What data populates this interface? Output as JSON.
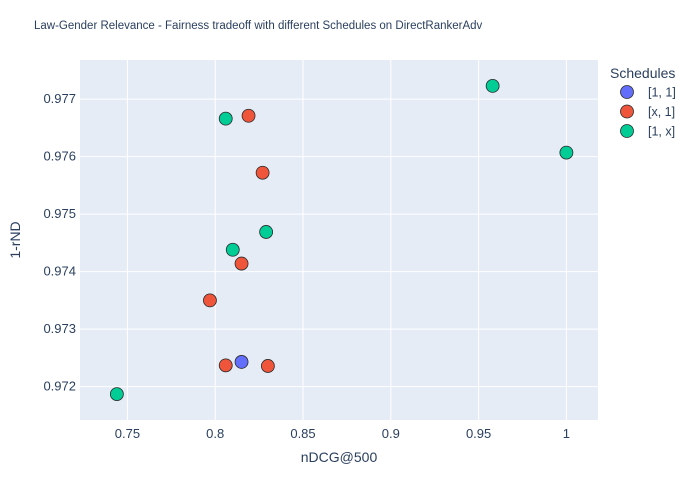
{
  "chart_data": {
    "type": "scatter",
    "title": "Law-Gender Relevance - Fairness tradeoff with different Schedules on DirectRankerAdv",
    "xlabel": "nDCG@500",
    "ylabel": "1-rND",
    "xlim": [
      0.723,
      1.018
    ],
    "ylim": [
      0.97142,
      0.97768
    ],
    "xticks": [
      0.75,
      0.8,
      0.85,
      0.9,
      0.95,
      1.0
    ],
    "xtick_labels": [
      "0.75",
      "0.8",
      "0.85",
      "0.9",
      "0.95",
      "1"
    ],
    "yticks": [
      0.972,
      0.973,
      0.974,
      0.975,
      0.976,
      0.977
    ],
    "ytick_labels": [
      "0.972",
      "0.973",
      "0.974",
      "0.975",
      "0.976",
      "0.977"
    ],
    "grid": true,
    "legend": {
      "title": "Schedules",
      "position": "right"
    },
    "series": [
      {
        "name": "[1, 1]",
        "color": "#636efa",
        "points": [
          [
            0.815,
            0.97243
          ]
        ]
      },
      {
        "name": "[x, 1]",
        "color": "#ef553b",
        "points": [
          [
            0.819,
            0.97671
          ],
          [
            0.827,
            0.97572
          ],
          [
            0.815,
            0.97414
          ],
          [
            0.797,
            0.9735
          ],
          [
            0.806,
            0.97237
          ],
          [
            0.83,
            0.97236
          ]
        ]
      },
      {
        "name": "[1, x]",
        "color": "#00cc96",
        "points": [
          [
            0.958,
            0.97723
          ],
          [
            0.806,
            0.97666
          ],
          [
            1.0,
            0.97607
          ],
          [
            0.829,
            0.97469
          ],
          [
            0.81,
            0.97438
          ],
          [
            0.744,
            0.97187
          ]
        ]
      }
    ]
  }
}
